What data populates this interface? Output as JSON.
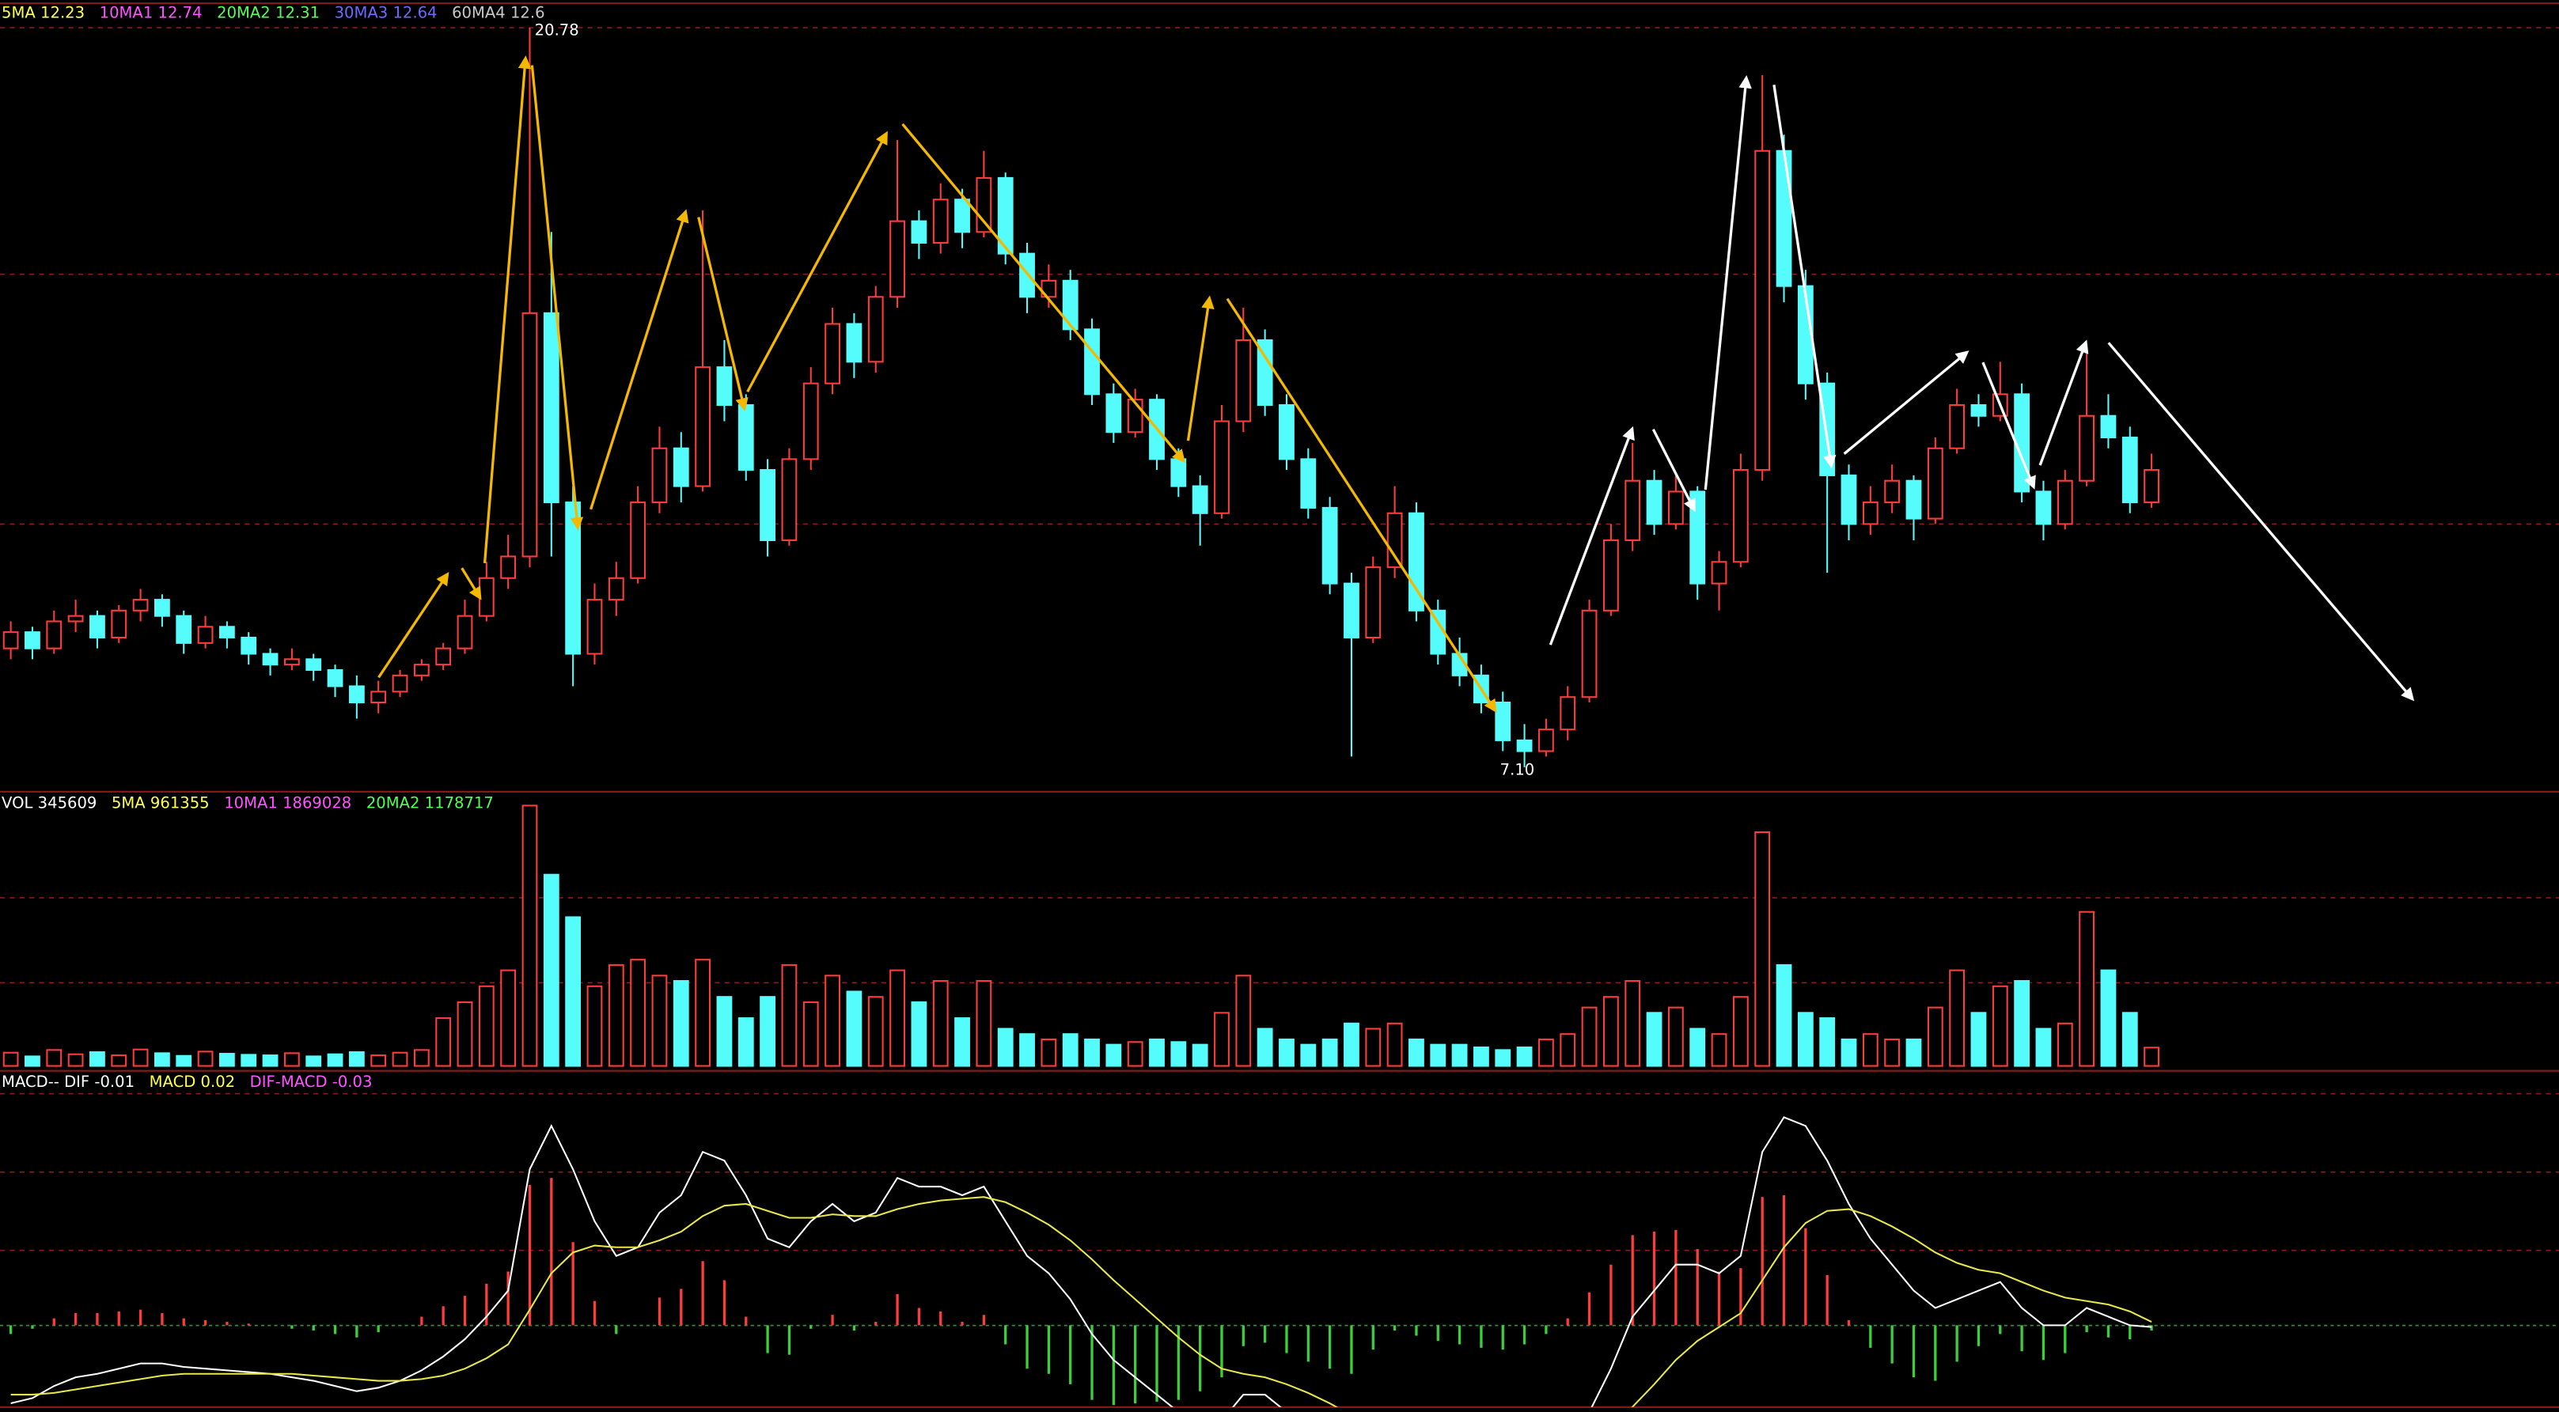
{
  "chart_data": {
    "type": "candlestick",
    "candles": [
      [
        9.3,
        9.8,
        9.1,
        9.6
      ],
      [
        9.6,
        9.7,
        9.1,
        9.3
      ],
      [
        9.3,
        10.0,
        9.2,
        9.8
      ],
      [
        9.8,
        10.2,
        9.6,
        9.9
      ],
      [
        9.9,
        10.0,
        9.3,
        9.5
      ],
      [
        9.5,
        10.1,
        9.4,
        10.0
      ],
      [
        10.0,
        10.4,
        9.8,
        10.2
      ],
      [
        10.2,
        10.3,
        9.7,
        9.9
      ],
      [
        9.9,
        10.0,
        9.2,
        9.4
      ],
      [
        9.4,
        9.9,
        9.3,
        9.7
      ],
      [
        9.7,
        9.8,
        9.3,
        9.5
      ],
      [
        9.5,
        9.6,
        9.0,
        9.2
      ],
      [
        9.2,
        9.3,
        8.8,
        9.0
      ],
      [
        9.0,
        9.3,
        8.9,
        9.1
      ],
      [
        9.1,
        9.2,
        8.7,
        8.9
      ],
      [
        8.9,
        9.0,
        8.4,
        8.6
      ],
      [
        8.6,
        8.8,
        8.0,
        8.3
      ],
      [
        8.3,
        8.7,
        8.1,
        8.5
      ],
      [
        8.5,
        8.9,
        8.4,
        8.8
      ],
      [
        8.8,
        9.1,
        8.7,
        9.0
      ],
      [
        9.0,
        9.4,
        8.9,
        9.3
      ],
      [
        9.3,
        10.2,
        9.2,
        9.9
      ],
      [
        9.9,
        10.9,
        9.8,
        10.6
      ],
      [
        10.6,
        11.4,
        10.4,
        11.0
      ],
      [
        11.0,
        20.78,
        10.8,
        15.5
      ],
      [
        15.5,
        17.0,
        11.0,
        12.0
      ],
      [
        12.0,
        12.3,
        8.6,
        9.2
      ],
      [
        9.2,
        10.5,
        9.0,
        10.2
      ],
      [
        10.2,
        10.9,
        9.9,
        10.6
      ],
      [
        10.6,
        12.3,
        10.5,
        12.0
      ],
      [
        12.0,
        13.4,
        11.8,
        13.0
      ],
      [
        13.0,
        13.3,
        12.0,
        12.3
      ],
      [
        12.3,
        17.4,
        12.2,
        14.5
      ],
      [
        14.5,
        15.0,
        13.5,
        13.8
      ],
      [
        13.8,
        14.0,
        12.4,
        12.6
      ],
      [
        12.6,
        12.8,
        11.0,
        11.3
      ],
      [
        11.3,
        13.0,
        11.2,
        12.8
      ],
      [
        12.8,
        14.5,
        12.6,
        14.2
      ],
      [
        14.2,
        15.6,
        14.0,
        15.3
      ],
      [
        15.3,
        15.5,
        14.3,
        14.6
      ],
      [
        14.6,
        16.0,
        14.4,
        15.8
      ],
      [
        15.8,
        18.7,
        15.6,
        17.2
      ],
      [
        17.2,
        17.4,
        16.5,
        16.8
      ],
      [
        16.8,
        17.9,
        16.6,
        17.6
      ],
      [
        17.6,
        17.8,
        16.7,
        17.0
      ],
      [
        17.0,
        18.5,
        16.9,
        18.0
      ],
      [
        18.0,
        18.1,
        16.4,
        16.6
      ],
      [
        16.6,
        16.8,
        15.5,
        15.8
      ],
      [
        15.8,
        16.4,
        15.6,
        16.1
      ],
      [
        16.1,
        16.3,
        15.0,
        15.2
      ],
      [
        15.2,
        15.4,
        13.8,
        14.0
      ],
      [
        14.0,
        14.2,
        13.1,
        13.3
      ],
      [
        13.3,
        14.1,
        13.2,
        13.9
      ],
      [
        13.9,
        14.0,
        12.6,
        12.8
      ],
      [
        12.8,
        13.0,
        12.1,
        12.3
      ],
      [
        12.3,
        12.5,
        11.2,
        11.8
      ],
      [
        11.8,
        13.8,
        11.7,
        13.5
      ],
      [
        13.5,
        15.6,
        13.3,
        15.0
      ],
      [
        15.0,
        15.2,
        13.6,
        13.8
      ],
      [
        13.8,
        14.0,
        12.6,
        12.8
      ],
      [
        12.8,
        13.0,
        11.7,
        11.9
      ],
      [
        11.9,
        12.1,
        10.3,
        10.5
      ],
      [
        10.5,
        10.7,
        7.3,
        9.5
      ],
      [
        9.5,
        11.0,
        9.4,
        10.8
      ],
      [
        10.8,
        12.3,
        10.6,
        11.8
      ],
      [
        11.8,
        12.0,
        9.8,
        10.0
      ],
      [
        10.0,
        10.2,
        9.0,
        9.2
      ],
      [
        9.2,
        9.5,
        8.6,
        8.8
      ],
      [
        8.8,
        9.0,
        8.1,
        8.3
      ],
      [
        8.3,
        8.5,
        7.4,
        7.6
      ],
      [
        7.6,
        7.9,
        7.1,
        7.4
      ],
      [
        7.4,
        8.0,
        7.3,
        7.8
      ],
      [
        7.8,
        8.6,
        7.6,
        8.4
      ],
      [
        8.4,
        10.2,
        8.3,
        10.0
      ],
      [
        10.0,
        11.6,
        9.9,
        11.3
      ],
      [
        11.3,
        13.1,
        11.1,
        12.4
      ],
      [
        12.4,
        12.6,
        11.4,
        11.6
      ],
      [
        11.6,
        12.5,
        11.5,
        12.2
      ],
      [
        12.2,
        12.3,
        10.2,
        10.5
      ],
      [
        10.5,
        11.1,
        10.0,
        10.9
      ],
      [
        10.9,
        12.9,
        10.8,
        12.6
      ],
      [
        12.6,
        19.9,
        12.4,
        18.5
      ],
      [
        18.5,
        18.8,
        15.7,
        16.0
      ],
      [
        16.0,
        16.3,
        13.9,
        14.2
      ],
      [
        14.2,
        14.4,
        10.7,
        12.5
      ],
      [
        12.5,
        12.7,
        11.3,
        11.6
      ],
      [
        11.6,
        12.3,
        11.4,
        12.0
      ],
      [
        12.0,
        12.7,
        11.8,
        12.4
      ],
      [
        12.4,
        12.5,
        11.3,
        11.7
      ],
      [
        11.7,
        13.2,
        11.6,
        13.0
      ],
      [
        13.0,
        14.1,
        12.9,
        13.8
      ],
      [
        13.8,
        14.0,
        13.4,
        13.6
      ],
      [
        13.6,
        14.6,
        13.5,
        14.0
      ],
      [
        14.0,
        14.2,
        12.0,
        12.2
      ],
      [
        12.2,
        12.4,
        11.3,
        11.6
      ],
      [
        11.6,
        12.6,
        11.5,
        12.4
      ],
      [
        12.4,
        14.9,
        12.3,
        13.6
      ],
      [
        13.6,
        14.0,
        13.0,
        13.2
      ],
      [
        13.2,
        13.4,
        11.8,
        12.0
      ],
      [
        12.0,
        12.9,
        11.9,
        12.6
      ]
    ],
    "ylim": [
      6.68,
      21.29
    ],
    "up_color": "#ff3c3c",
    "down_color": "#54fcfc",
    "annotations": [
      "20.78",
      "7.10"
    ],
    "labels": [
      {
        "name": "5MA",
        "value": 12.23,
        "color": "#ffff54"
      },
      {
        "name": "10MA1",
        "value": 12.74,
        "color": "#ff54ff"
      },
      {
        "name": "20MA2",
        "value": 12.31,
        "color": "#54ff54"
      },
      {
        "name": "30MA3",
        "value": 12.64,
        "color": "#6b6bff"
      },
      {
        "name": "60MA4",
        "value": 12.6,
        "color": "#c8c8c8"
      }
    ],
    "volume": {
      "values": [
        250000,
        180000,
        300000,
        220000,
        260000,
        200000,
        310000,
        240000,
        190000,
        270000,
        230000,
        210000,
        200000,
        240000,
        180000,
        220000,
        260000,
        200000,
        250000,
        300000,
        900000,
        1200000,
        1500000,
        1800000,
        4900000,
        3600000,
        2800000,
        1500000,
        1900000,
        2000000,
        1700000,
        1600000,
        2000000,
        1300000,
        900000,
        1300000,
        1900000,
        1200000,
        1700000,
        1400000,
        1300000,
        1800000,
        1200000,
        1600000,
        900000,
        1600000,
        700000,
        600000,
        500000,
        600000,
        500000,
        400000,
        450000,
        500000,
        450000,
        400000,
        1000000,
        1700000,
        700000,
        500000,
        400000,
        500000,
        800000,
        700000,
        800000,
        500000,
        400000,
        400000,
        350000,
        300000,
        350000,
        500000,
        600000,
        1100000,
        1300000,
        1600000,
        1000000,
        1100000,
        700000,
        600000,
        1300000,
        4400000,
        1900000,
        1000000,
        900000,
        500000,
        600000,
        500000,
        500000,
        1100000,
        1800000,
        1000000,
        1500000,
        1600000,
        700000,
        800000,
        2900000,
        1800000,
        1000000,
        345609
      ],
      "ylim": [
        0,
        5100000
      ],
      "labels": [
        {
          "name": "VOL",
          "value": 345609,
          "color": "#ffffff"
        },
        {
          "name": "5MA",
          "value": 961355,
          "color": "#ffff54"
        },
        {
          "name": "10MA1",
          "value": 1869028,
          "color": "#ff54ff"
        },
        {
          "name": "20MA2",
          "value": 1178717,
          "color": "#54ff54"
        }
      ]
    },
    "macd": {
      "dif": [
        -0.45,
        -0.42,
        -0.35,
        -0.3,
        -0.28,
        -0.25,
        -0.22,
        -0.22,
        -0.24,
        -0.25,
        -0.26,
        -0.27,
        -0.28,
        -0.3,
        -0.32,
        -0.35,
        -0.38,
        -0.36,
        -0.32,
        -0.26,
        -0.18,
        -0.08,
        0.05,
        0.2,
        0.9,
        1.15,
        0.9,
        0.6,
        0.4,
        0.45,
        0.65,
        0.75,
        1.0,
        0.95,
        0.75,
        0.5,
        0.45,
        0.6,
        0.7,
        0.6,
        0.65,
        0.85,
        0.8,
        0.8,
        0.75,
        0.8,
        0.6,
        0.4,
        0.3,
        0.15,
        -0.05,
        -0.2,
        -0.3,
        -0.4,
        -0.5,
        -0.55,
        -0.55,
        -0.4,
        -0.4,
        -0.5,
        -0.6,
        -0.7,
        -0.8,
        -0.7,
        -0.6,
        -0.65,
        -0.7,
        -0.75,
        -0.8,
        -0.85,
        -0.85,
        -0.8,
        -0.7,
        -0.5,
        -0.25,
        0.05,
        0.2,
        0.35,
        0.35,
        0.3,
        0.4,
        1.0,
        1.2,
        1.15,
        0.95,
        0.7,
        0.5,
        0.35,
        0.2,
        0.1,
        0.15,
        0.2,
        0.25,
        0.1,
        0.0,
        0.0,
        0.1,
        0.05,
        0.0,
        -0.01
      ],
      "dea": [
        -0.4,
        -0.4,
        -0.39,
        -0.37,
        -0.35,
        -0.33,
        -0.31,
        -0.29,
        -0.28,
        -0.28,
        -0.28,
        -0.28,
        -0.28,
        -0.28,
        -0.29,
        -0.3,
        -0.31,
        -0.32,
        -0.32,
        -0.31,
        -0.29,
        -0.25,
        -0.19,
        -0.11,
        0.09,
        0.3,
        0.42,
        0.46,
        0.45,
        0.45,
        0.49,
        0.54,
        0.63,
        0.69,
        0.7,
        0.66,
        0.62,
        0.62,
        0.64,
        0.63,
        0.63,
        0.67,
        0.7,
        0.72,
        0.73,
        0.74,
        0.71,
        0.65,
        0.58,
        0.49,
        0.38,
        0.26,
        0.15,
        0.04,
        -0.07,
        -0.17,
        -0.25,
        -0.28,
        -0.3,
        -0.34,
        -0.39,
        -0.45,
        -0.52,
        -0.56,
        -0.57,
        -0.59,
        -0.61,
        -0.64,
        -0.67,
        -0.71,
        -0.74,
        -0.75,
        -0.74,
        -0.69,
        -0.6,
        -0.47,
        -0.34,
        -0.2,
        -0.09,
        -0.01,
        0.07,
        0.26,
        0.45,
        0.59,
        0.66,
        0.67,
        0.63,
        0.57,
        0.5,
        0.42,
        0.36,
        0.32,
        0.3,
        0.25,
        0.2,
        0.16,
        0.14,
        0.12,
        0.08,
        0.02
      ],
      "hist": [
        -0.05,
        -0.02,
        0.04,
        0.07,
        0.07,
        0.08,
        0.09,
        0.07,
        0.04,
        0.03,
        0.02,
        0.01,
        0,
        -0.02,
        -0.03,
        -0.05,
        -0.07,
        -0.04,
        0,
        0.05,
        0.11,
        0.17,
        0.24,
        0.31,
        0.81,
        0.85,
        0.48,
        0.14,
        -0.05,
        0,
        0.16,
        0.21,
        0.37,
        0.26,
        0.05,
        -0.16,
        -0.17,
        -0.02,
        0.06,
        -0.03,
        0.02,
        0.18,
        0.1,
        0.08,
        0.02,
        0.06,
        -0.11,
        -0.25,
        -0.28,
        -0.34,
        -0.43,
        -0.46,
        -0.45,
        -0.44,
        -0.43,
        -0.38,
        -0.3,
        -0.12,
        -0.1,
        -0.16,
        -0.21,
        -0.25,
        -0.28,
        -0.14,
        -0.03,
        -0.06,
        -0.09,
        -0.11,
        -0.13,
        -0.14,
        -0.11,
        -0.05,
        0.04,
        0.19,
        0.35,
        0.52,
        0.54,
        0.55,
        0.44,
        0.31,
        0.33,
        0.74,
        0.75,
        0.56,
        0.29,
        0.03,
        -0.13,
        -0.22,
        -0.3,
        -0.32,
        -0.21,
        -0.12,
        -0.05,
        -0.15,
        -0.2,
        -0.16,
        -0.04,
        -0.07,
        -0.08,
        -0.03
      ],
      "ylim": [
        -0.5,
        1.43
      ],
      "dif_color": "#ffffff",
      "dea_color": "#e8e84a",
      "pos_color": "#ff3c3c",
      "neg_color": "#3ccf3c",
      "labels": [
        {
          "name": "MACD--  DIF",
          "value": -0.01,
          "color": "#ffffff"
        },
        {
          "name": "MACD",
          "value": 0.02,
          "color": "#ffff54"
        },
        {
          "name": "DIF-MACD",
          "value": -0.03,
          "color": "#ff54ff"
        }
      ]
    }
  }
}
